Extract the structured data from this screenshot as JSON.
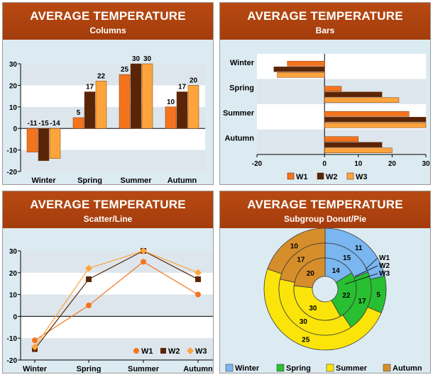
{
  "colors": {
    "W1": "#f4741e",
    "W2": "#5a2506",
    "W3": "#fda43c",
    "Winter": "#7ab6ef",
    "Spring": "#29bf32",
    "Summer": "#fbe40a",
    "Autumn": "#d68e2a"
  },
  "chart_data": [
    {
      "type": "bar",
      "title": "AVERAGE TEMPERATURE",
      "subtitle": "Columns",
      "orientation": "vertical",
      "categories": [
        "Winter",
        "Spring",
        "Summer",
        "Autumn"
      ],
      "series": [
        {
          "name": "W1",
          "values": [
            -11,
            5,
            25,
            10
          ]
        },
        {
          "name": "W2",
          "values": [
            -15,
            17,
            30,
            17
          ]
        },
        {
          "name": "W3",
          "values": [
            -14,
            22,
            30,
            20
          ]
        }
      ],
      "ylim": [
        -20,
        30
      ],
      "yticks": [
        "30",
        "20",
        "10",
        "0",
        "-10",
        "-20"
      ],
      "data_labels": [
        "-11",
        "-15",
        "-14",
        "5",
        "17",
        "22",
        "25",
        "30",
        "30",
        "10",
        "17",
        "20"
      ],
      "legend": "none"
    },
    {
      "type": "bar",
      "title": "AVERAGE TEMPERATURE",
      "subtitle": "Bars",
      "orientation": "horizontal",
      "categories": [
        "Winter",
        "Spring",
        "Summer",
        "Autumn"
      ],
      "series": [
        {
          "name": "W1",
          "values": [
            -11,
            5,
            25,
            10
          ]
        },
        {
          "name": "W2",
          "values": [
            -15,
            17,
            30,
            17
          ]
        },
        {
          "name": "W3",
          "values": [
            -14,
            22,
            30,
            20
          ]
        }
      ],
      "xlim": [
        -20,
        30
      ],
      "xticks": [
        "-20",
        "0",
        "10",
        "20",
        "30"
      ],
      "legend": "bottom",
      "legend_items": [
        "W1",
        "W2",
        "W3"
      ]
    },
    {
      "type": "line",
      "title": "AVERAGE TEMPERATURE",
      "subtitle": "Scatter/Line",
      "categories": [
        "Winter",
        "Spring",
        "Summer",
        "Autumn"
      ],
      "series": [
        {
          "name": "W1",
          "marker": "circle",
          "values": [
            -11,
            5,
            25,
            10
          ]
        },
        {
          "name": "W2",
          "marker": "square",
          "values": [
            -15,
            17,
            30,
            17
          ]
        },
        {
          "name": "W3",
          "marker": "diamond",
          "values": [
            -14,
            22,
            30,
            20
          ]
        }
      ],
      "ylim": [
        -20,
        30
      ],
      "yticks": [
        "30",
        "20",
        "10",
        "0",
        "-10",
        "-20"
      ],
      "legend": "bottom-right",
      "legend_items": [
        "W1",
        "W2",
        "W3"
      ]
    },
    {
      "type": "pie",
      "title": "AVERAGE TEMPERATURE",
      "subtitle": "Subgroup Donut/Pie",
      "categories": [
        "Winter",
        "Spring",
        "Summer",
        "Autumn"
      ],
      "rings": [
        {
          "name": "W1",
          "values": [
            11,
            5,
            25,
            10
          ]
        },
        {
          "name": "W2",
          "values": [
            15,
            17,
            30,
            17
          ]
        },
        {
          "name": "W3",
          "values": [
            14,
            22,
            30,
            20
          ]
        }
      ],
      "ring_labels": [
        "W1",
        "W2",
        "W3"
      ],
      "legend": "bottom",
      "legend_items": [
        "Winter",
        "Spring",
        "Summer",
        "Autumn"
      ]
    }
  ]
}
